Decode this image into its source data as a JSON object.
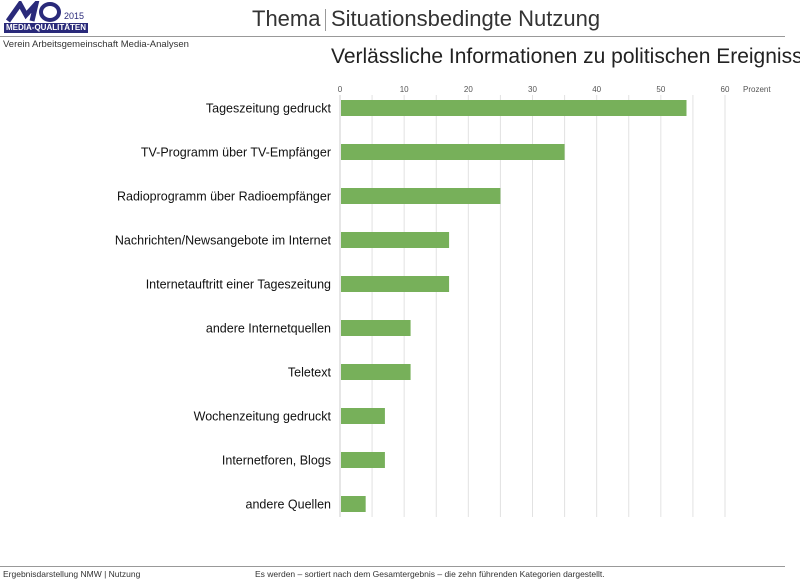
{
  "header": {
    "logo_text": "MQ",
    "logo_year": "2015",
    "logo_banner": "MEDIA-QUALITÄTEN",
    "organization": "Verein Arbeitsgemeinschaft Media-Analysen",
    "section": "Thema",
    "topic": "Situationsbedingte Nutzung"
  },
  "chart_data": {
    "type": "bar",
    "orientation": "horizontal",
    "title": "Verlässliche Informationen zu politischen Ereignissen",
    "xlabel": "Prozent",
    "xlim": [
      0,
      60
    ],
    "xticks": [
      0,
      10,
      20,
      30,
      40,
      50,
      60
    ],
    "grid": true,
    "categories": [
      "Tageszeitung gedruckt",
      "TV-Programm über TV-Empfänger",
      "Radioprogramm über Radioempfänger",
      "Nachrichten/Newsangebote im Internet",
      "Internetauftritt einer Tageszeitung",
      "andere Internetquellen",
      "Teletext",
      "Wochenzeitung gedruckt",
      "Internetforen, Blogs",
      "andere Quellen"
    ],
    "values": [
      54,
      35,
      25,
      17,
      17,
      11,
      11,
      7,
      7,
      4
    ],
    "color": "#77b05a"
  },
  "footer": {
    "left": "Ergebnisdarstellung NMW | Nutzung",
    "note": "Es werden – sortiert nach dem Gesamtergebnis – die zehn führenden Kategorien dargestellt."
  }
}
